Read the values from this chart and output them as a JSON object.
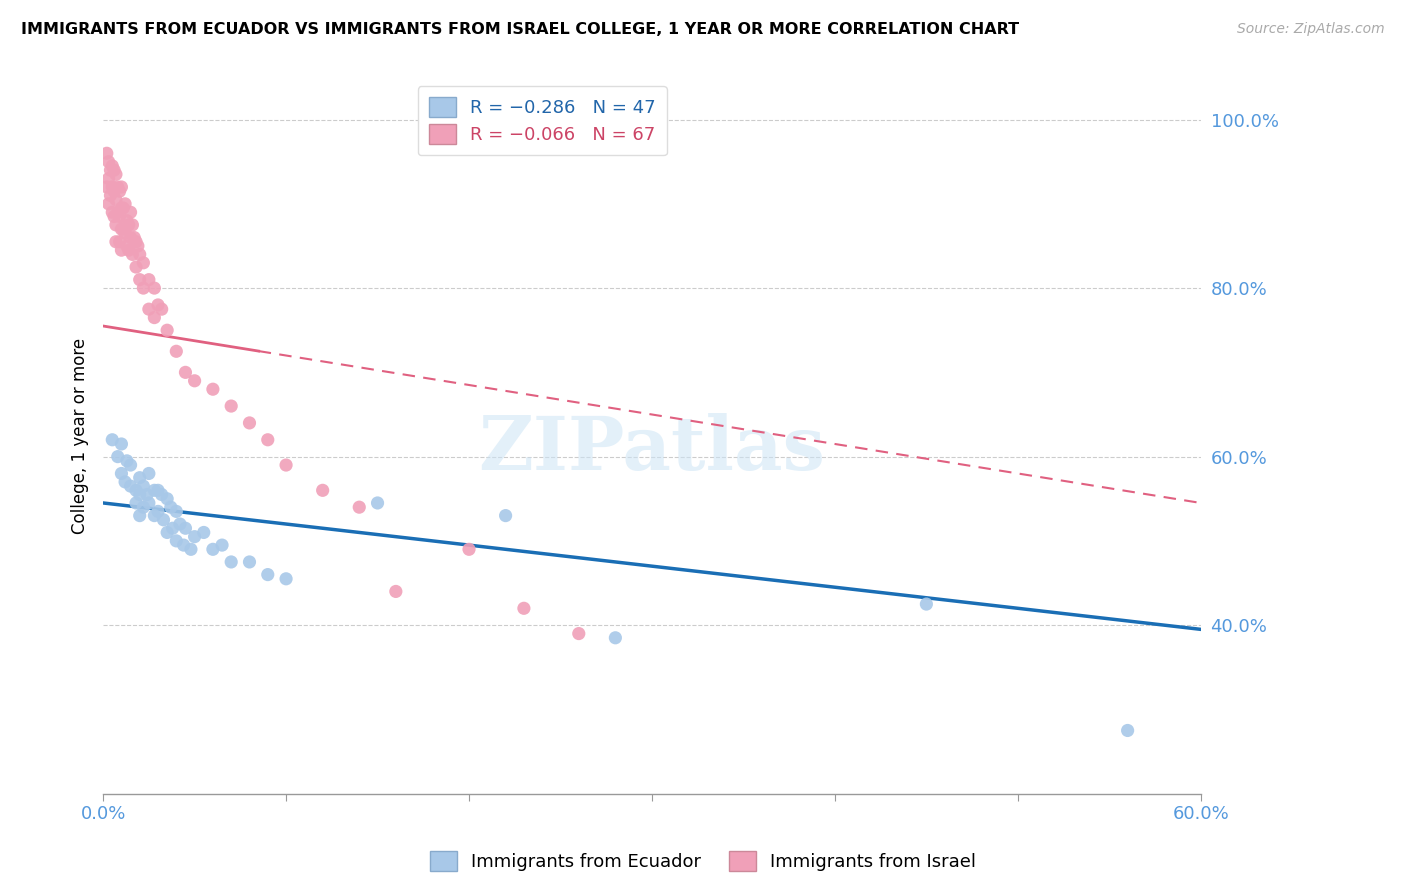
{
  "title": "IMMIGRANTS FROM ECUADOR VS IMMIGRANTS FROM ISRAEL COLLEGE, 1 YEAR OR MORE CORRELATION CHART",
  "source": "Source: ZipAtlas.com",
  "ylabel": "College, 1 year or more",
  "xlim": [
    0.0,
    0.6
  ],
  "ylim": [
    0.2,
    1.05
  ],
  "xticks": [
    0.0,
    0.1,
    0.2,
    0.3,
    0.4,
    0.5,
    0.6
  ],
  "xticklabels": [
    "0.0%",
    "",
    "",
    "",
    "",
    "",
    "60.0%"
  ],
  "yticks": [
    0.4,
    0.6,
    0.8,
    1.0
  ],
  "yticklabels": [
    "40.0%",
    "60.0%",
    "80.0%",
    "100.0%"
  ],
  "legend_ecuador": "R = −0.286   N = 47",
  "legend_israel": "R = −0.066   N = 67",
  "color_ecuador": "#a8c8e8",
  "color_israel": "#f0a0b8",
  "color_ecuador_line": "#1a6eb5",
  "color_israel_line": "#e06080",
  "watermark": "ZIPatlas",
  "ecuador_line_x": [
    0.0,
    0.6
  ],
  "ecuador_line_y": [
    0.545,
    0.395
  ],
  "israel_line_x": [
    0.0,
    0.6
  ],
  "israel_line_y": [
    0.755,
    0.545
  ],
  "ecuador_x": [
    0.005,
    0.008,
    0.01,
    0.01,
    0.012,
    0.013,
    0.015,
    0.015,
    0.018,
    0.018,
    0.02,
    0.02,
    0.02,
    0.022,
    0.022,
    0.024,
    0.025,
    0.025,
    0.028,
    0.028,
    0.03,
    0.03,
    0.032,
    0.033,
    0.035,
    0.035,
    0.037,
    0.038,
    0.04,
    0.04,
    0.042,
    0.044,
    0.045,
    0.048,
    0.05,
    0.055,
    0.06,
    0.065,
    0.07,
    0.08,
    0.09,
    0.1,
    0.15,
    0.22,
    0.28,
    0.45,
    0.56
  ],
  "ecuador_y": [
    0.62,
    0.6,
    0.615,
    0.58,
    0.57,
    0.595,
    0.565,
    0.59,
    0.56,
    0.545,
    0.575,
    0.555,
    0.53,
    0.565,
    0.54,
    0.555,
    0.58,
    0.545,
    0.56,
    0.53,
    0.56,
    0.535,
    0.555,
    0.525,
    0.55,
    0.51,
    0.54,
    0.515,
    0.535,
    0.5,
    0.52,
    0.495,
    0.515,
    0.49,
    0.505,
    0.51,
    0.49,
    0.495,
    0.475,
    0.475,
    0.46,
    0.455,
    0.545,
    0.53,
    0.385,
    0.425,
    0.275
  ],
  "israel_x": [
    0.002,
    0.002,
    0.003,
    0.003,
    0.003,
    0.004,
    0.004,
    0.005,
    0.005,
    0.005,
    0.006,
    0.006,
    0.006,
    0.007,
    0.007,
    0.007,
    0.007,
    0.008,
    0.008,
    0.009,
    0.009,
    0.009,
    0.01,
    0.01,
    0.01,
    0.01,
    0.011,
    0.011,
    0.012,
    0.012,
    0.013,
    0.013,
    0.014,
    0.014,
    0.015,
    0.015,
    0.016,
    0.016,
    0.017,
    0.018,
    0.018,
    0.019,
    0.02,
    0.02,
    0.022,
    0.022,
    0.025,
    0.025,
    0.028,
    0.028,
    0.03,
    0.032,
    0.035,
    0.04,
    0.045,
    0.05,
    0.06,
    0.07,
    0.08,
    0.09,
    0.1,
    0.12,
    0.14,
    0.16,
    0.2,
    0.23,
    0.26
  ],
  "israel_y": [
    0.96,
    0.92,
    0.95,
    0.93,
    0.9,
    0.94,
    0.91,
    0.945,
    0.92,
    0.89,
    0.94,
    0.915,
    0.885,
    0.935,
    0.905,
    0.875,
    0.855,
    0.92,
    0.89,
    0.915,
    0.885,
    0.855,
    0.92,
    0.895,
    0.87,
    0.845,
    0.895,
    0.87,
    0.9,
    0.865,
    0.88,
    0.85,
    0.875,
    0.845,
    0.89,
    0.86,
    0.875,
    0.84,
    0.86,
    0.855,
    0.825,
    0.85,
    0.84,
    0.81,
    0.83,
    0.8,
    0.81,
    0.775,
    0.8,
    0.765,
    0.78,
    0.775,
    0.75,
    0.725,
    0.7,
    0.69,
    0.68,
    0.66,
    0.64,
    0.62,
    0.59,
    0.56,
    0.54,
    0.44,
    0.49,
    0.42,
    0.39
  ]
}
